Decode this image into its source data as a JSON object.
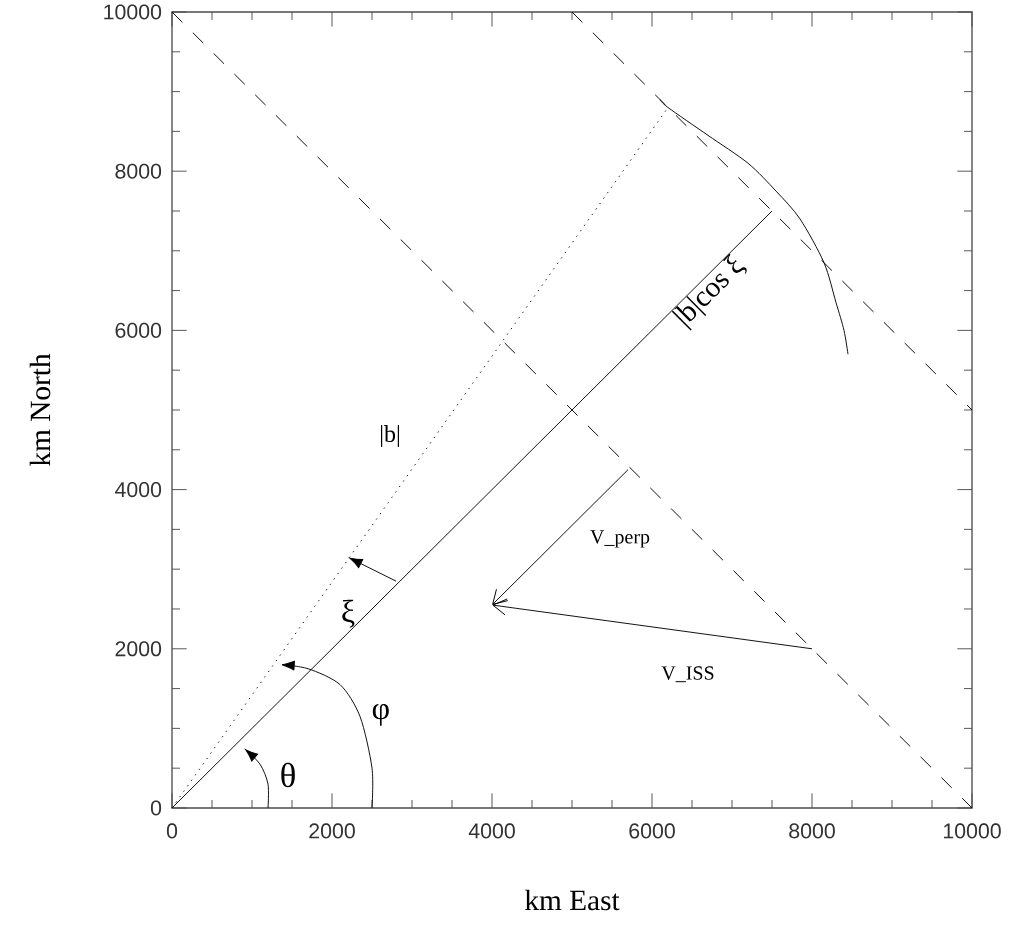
{
  "chart_data": {
    "type": "line",
    "xlabel": "km East",
    "ylabel": "km North",
    "xlim": [
      0,
      10000
    ],
    "ylim": [
      0,
      10000
    ],
    "xticks": [
      0,
      {
        "value": 500,
        "label": null
      },
      {
        "value": 1000,
        "label": null
      },
      {
        "value": 1500,
        "label": null
      },
      2000,
      {
        "value": 2500,
        "label": null
      },
      {
        "value": 3000,
        "label": null
      },
      {
        "value": 3500,
        "label": null
      },
      4000,
      {
        "value": 4500,
        "label": null
      },
      {
        "value": 5000,
        "label": null
      },
      {
        "value": 5500,
        "label": null
      },
      6000,
      {
        "value": 6500,
        "label": null
      },
      {
        "value": 7000,
        "label": null
      },
      {
        "value": 7500,
        "label": null
      },
      8000,
      {
        "value": 8500,
        "label": null
      },
      {
        "value": 9000,
        "label": null
      },
      {
        "value": 9500,
        "label": null
      },
      10000
    ],
    "yticks": [
      0,
      {
        "value": 500,
        "label": null
      },
      {
        "value": 1000,
        "label": null
      },
      {
        "value": 1500,
        "label": null
      },
      2000,
      {
        "value": 2500,
        "label": null
      },
      {
        "value": 3000,
        "label": null
      },
      {
        "value": 3500,
        "label": null
      },
      4000,
      {
        "value": 4500,
        "label": null
      },
      {
        "value": 5000,
        "label": null
      },
      {
        "value": 5500,
        "label": null
      },
      6000,
      {
        "value": 6500,
        "label": null
      },
      {
        "value": 7000,
        "label": null
      },
      {
        "value": 7500,
        "label": null
      },
      8000,
      {
        "value": 8500,
        "label": null
      },
      {
        "value": 9000,
        "label": null
      },
      {
        "value": 9500,
        "label": null
      },
      10000
    ],
    "series": [
      {
        "color": "#000000",
        "line_style": "dashed",
        "x": [
          0,
          10000
        ],
        "values": [
          10000,
          0
        ]
      },
      {
        "color": "#000000",
        "line_style": "dashed",
        "x": [
          5000,
          10000
        ],
        "values": [
          10000,
          5000
        ]
      },
      {
        "color": "#000000",
        "line_style": "solid",
        "x": [
          0,
          7500
        ],
        "values": [
          0,
          7500
        ]
      },
      {
        "color": "#000000",
        "line_style": "dotted",
        "x": [
          0,
          6200
        ],
        "values": [
          0,
          8800
        ]
      },
      {
        "color": "#000000",
        "line_style": "solid",
        "x": [
          6100,
          6200,
          6700,
          7200,
          7550,
          7850,
          8150,
          8300,
          8400,
          8450
        ],
        "values": [
          8900,
          8800,
          8450,
          8100,
          7750,
          7400,
          6850,
          6350,
          6000,
          5700
        ]
      }
    ],
    "annotations": [
      "|b|",
      "|b|cos ξ",
      "ξ",
      "φ",
      "θ",
      "V_perp",
      "V_ISS"
    ]
  }
}
